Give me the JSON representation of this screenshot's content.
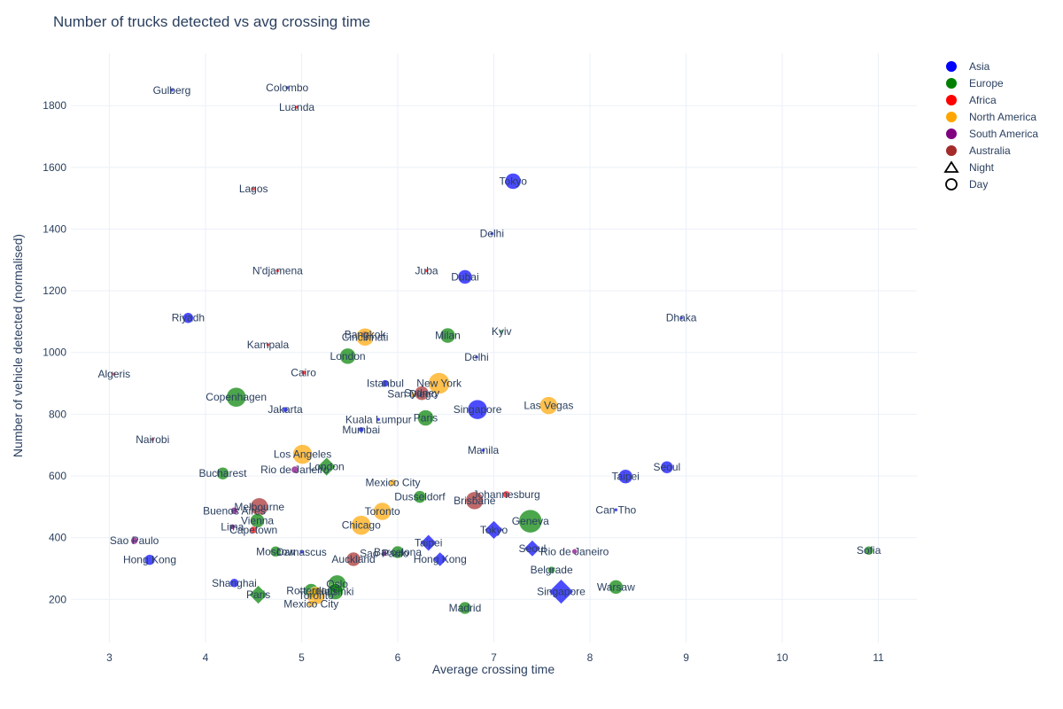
{
  "chart_data": {
    "type": "scatter",
    "title": "Number of trucks detected vs avg crossing time",
    "xlabel": "Average crossing time",
    "ylabel": "Number of vehicle detected (normalised)",
    "xlim": [
      2.6,
      11.4
    ],
    "ylim": [
      60,
      1970
    ],
    "xticks": [
      3,
      4,
      5,
      6,
      7,
      8,
      9,
      10,
      11
    ],
    "yticks": [
      200,
      400,
      600,
      800,
      1000,
      1200,
      1400,
      1600,
      1800
    ],
    "grid": true,
    "legend_position": "top-right",
    "colors": {
      "Asia": "#0000ff",
      "Europe": "#008000",
      "Africa": "#ff0000",
      "North America": "#ffa500",
      "South America": "#800080",
      "Australia": "#a52a2a"
    },
    "legend": {
      "regions": [
        "Asia",
        "Europe",
        "Africa",
        "North America",
        "South America",
        "Australia"
      ],
      "shapes": [
        {
          "label": "Night",
          "symbol": "triangle"
        },
        {
          "label": "Day",
          "symbol": "circle"
        }
      ]
    },
    "points": [
      {
        "label": "Gulberg",
        "x": 3.65,
        "y": 1850,
        "region": "Asia",
        "symbol": "circle",
        "size": 2
      },
      {
        "label": "Colombo",
        "x": 4.85,
        "y": 1858,
        "region": "Asia",
        "symbol": "circle",
        "size": 2
      },
      {
        "label": "Luanda",
        "x": 4.95,
        "y": 1795,
        "region": "Africa",
        "symbol": "circle",
        "size": 1
      },
      {
        "label": "Lagos",
        "x": 4.5,
        "y": 1530,
        "region": "Africa",
        "symbol": "circle",
        "size": 3
      },
      {
        "label": "Tokyo",
        "x": 7.2,
        "y": 1555,
        "region": "Asia",
        "symbol": "circle",
        "size": 18
      },
      {
        "label": "Delhi",
        "x": 6.98,
        "y": 1385,
        "region": "Asia",
        "symbol": "circle",
        "size": 4
      },
      {
        "label": "N'djamena",
        "x": 4.75,
        "y": 1265,
        "region": "Africa",
        "symbol": "circle",
        "size": 1
      },
      {
        "label": "Juba",
        "x": 6.3,
        "y": 1265,
        "region": "Africa",
        "symbol": "circle",
        "size": 1
      },
      {
        "label": "Dubai",
        "x": 6.7,
        "y": 1245,
        "region": "Asia",
        "symbol": "circle",
        "size": 16
      },
      {
        "label": "Riyadh",
        "x": 3.82,
        "y": 1112,
        "region": "Asia",
        "symbol": "circle",
        "size": 12
      },
      {
        "label": "Dhaka",
        "x": 8.95,
        "y": 1112,
        "region": "Asia",
        "symbol": "circle",
        "size": 2
      },
      {
        "label": "Kyiv",
        "x": 7.08,
        "y": 1068,
        "region": "Europe",
        "symbol": "circle",
        "size": 4
      },
      {
        "label": "Milan",
        "x": 6.52,
        "y": 1055,
        "region": "Europe",
        "symbol": "circle",
        "size": 17
      },
      {
        "label": "Bangkok",
        "x": 5.66,
        "y": 1058,
        "region": "Asia",
        "symbol": "circle",
        "size": 8
      },
      {
        "label": "Cincinnati",
        "x": 5.66,
        "y": 1050,
        "region": "North America",
        "symbol": "circle",
        "size": 20
      },
      {
        "label": "Kampala",
        "x": 4.65,
        "y": 1025,
        "region": "Africa",
        "symbol": "circle",
        "size": 1
      },
      {
        "label": "London",
        "x": 5.48,
        "y": 988,
        "region": "Europe",
        "symbol": "circle",
        "size": 18
      },
      {
        "label": "Delhi",
        "x": 6.82,
        "y": 985,
        "region": "Asia",
        "symbol": "circle",
        "size": 4
      },
      {
        "label": "Algeris",
        "x": 3.05,
        "y": 930,
        "region": "Africa",
        "symbol": "circle",
        "size": 2
      },
      {
        "label": "Cairo",
        "x": 5.02,
        "y": 935,
        "region": "Africa",
        "symbol": "circle",
        "size": 5
      },
      {
        "label": "Istanbul",
        "x": 5.87,
        "y": 900,
        "region": "Asia",
        "symbol": "circle",
        "size": 8
      },
      {
        "label": "New York",
        "x": 6.43,
        "y": 900,
        "region": "North America",
        "symbol": "circle",
        "size": 24
      },
      {
        "label": "Sydney",
        "x": 6.25,
        "y": 868,
        "region": "Australia",
        "symbol": "circle",
        "size": 16
      },
      {
        "label": "San Diego",
        "x": 6.15,
        "y": 865,
        "region": "North America",
        "symbol": "circle",
        "size": 6
      },
      {
        "label": "Copenhagen",
        "x": 4.32,
        "y": 855,
        "region": "Europe",
        "symbol": "circle",
        "size": 22
      },
      {
        "label": "Jakarta",
        "x": 4.83,
        "y": 815,
        "region": "Asia",
        "symbol": "circle",
        "size": 6
      },
      {
        "label": "Singapore",
        "x": 6.83,
        "y": 815,
        "region": "Asia",
        "symbol": "circle",
        "size": 22
      },
      {
        "label": "Las Vegas",
        "x": 7.57,
        "y": 828,
        "region": "North America",
        "symbol": "circle",
        "size": 20
      },
      {
        "label": "Kuala Lumpur",
        "x": 5.8,
        "y": 783,
        "region": "Asia",
        "symbol": "circle",
        "size": 3
      },
      {
        "label": "Paris",
        "x": 6.29,
        "y": 788,
        "region": "Europe",
        "symbol": "circle",
        "size": 18
      },
      {
        "label": "Mumbai",
        "x": 5.62,
        "y": 750,
        "region": "Asia",
        "symbol": "circle",
        "size": 6
      },
      {
        "label": "Nairobi",
        "x": 3.45,
        "y": 718,
        "region": "Africa",
        "symbol": "circle",
        "size": 1
      },
      {
        "label": "Manila",
        "x": 6.89,
        "y": 683,
        "region": "Asia",
        "symbol": "circle",
        "size": 4
      },
      {
        "label": "Los Angeles",
        "x": 5.01,
        "y": 670,
        "region": "North America",
        "symbol": "circle",
        "size": 22
      },
      {
        "label": "London",
        "x": 5.26,
        "y": 630,
        "region": "Europe",
        "symbol": "triangle",
        "size": 18
      },
      {
        "label": "Rio de Janeiro",
        "x": 4.93,
        "y": 620,
        "region": "South America",
        "symbol": "circle",
        "size": 8
      },
      {
        "label": "Seoul",
        "x": 8.8,
        "y": 628,
        "region": "Asia",
        "symbol": "circle",
        "size": 14
      },
      {
        "label": "Bucharest",
        "x": 4.18,
        "y": 608,
        "region": "Europe",
        "symbol": "circle",
        "size": 14
      },
      {
        "label": "Taipei",
        "x": 8.37,
        "y": 598,
        "region": "Asia",
        "symbol": "circle",
        "size": 16
      },
      {
        "label": "Mexico City",
        "x": 5.95,
        "y": 578,
        "region": "North America",
        "symbol": "circle",
        "size": 8
      },
      {
        "label": "Johannesburg",
        "x": 7.13,
        "y": 540,
        "region": "Africa",
        "symbol": "circle",
        "size": 8
      },
      {
        "label": "Dusseldorf",
        "x": 6.23,
        "y": 532,
        "region": "Europe",
        "symbol": "circle",
        "size": 14
      },
      {
        "label": "Brisbane",
        "x": 6.8,
        "y": 520,
        "region": "Australia",
        "symbol": "circle",
        "size": 20
      },
      {
        "label": "Melbourne",
        "x": 4.56,
        "y": 500,
        "region": "Australia",
        "symbol": "circle",
        "size": 20
      },
      {
        "label": "Can Tho",
        "x": 8.27,
        "y": 490,
        "region": "Asia",
        "symbol": "circle",
        "size": 3
      },
      {
        "label": "Buenos Aires",
        "x": 4.3,
        "y": 487,
        "region": "South America",
        "symbol": "circle",
        "size": 8
      },
      {
        "label": "Toronto",
        "x": 5.84,
        "y": 485,
        "region": "North America",
        "symbol": "circle",
        "size": 20
      },
      {
        "label": "Vienna",
        "x": 4.54,
        "y": 455,
        "region": "Europe",
        "symbol": "circle",
        "size": 16
      },
      {
        "label": "Geneva",
        "x": 7.38,
        "y": 453,
        "region": "Europe",
        "symbol": "circle",
        "size": 26
      },
      {
        "label": "Chicago",
        "x": 5.62,
        "y": 440,
        "region": "North America",
        "symbol": "circle",
        "size": 22
      },
      {
        "label": "Lima",
        "x": 4.28,
        "y": 435,
        "region": "South America",
        "symbol": "circle",
        "size": 6
      },
      {
        "label": "Capetown",
        "x": 4.5,
        "y": 425,
        "region": "Africa",
        "symbol": "circle",
        "size": 8
      },
      {
        "label": "Tokyo",
        "x": 7.0,
        "y": 425,
        "region": "Asia",
        "symbol": "triangle",
        "size": 18
      },
      {
        "label": "Sao Paulo",
        "x": 3.26,
        "y": 390,
        "region": "South America",
        "symbol": "circle",
        "size": 8
      },
      {
        "label": "Taipei",
        "x": 6.32,
        "y": 383,
        "region": "Asia",
        "symbol": "triangle",
        "size": 16
      },
      {
        "label": "Seoul",
        "x": 7.4,
        "y": 365,
        "region": "Asia",
        "symbol": "triangle",
        "size": 16
      },
      {
        "label": "Rio de Janeiro",
        "x": 7.84,
        "y": 355,
        "region": "South America",
        "symbol": "circle",
        "size": 6
      },
      {
        "label": "Sofia",
        "x": 10.9,
        "y": 358,
        "region": "Europe",
        "symbol": "circle",
        "size": 10
      },
      {
        "label": "Moscow",
        "x": 4.73,
        "y": 355,
        "region": "Europe",
        "symbol": "circle",
        "size": 12
      },
      {
        "label": "Damascus",
        "x": 5.0,
        "y": 353,
        "region": "Asia",
        "symbol": "circle",
        "size": 3
      },
      {
        "label": "Barcelona",
        "x": 6.0,
        "y": 353,
        "region": "Europe",
        "symbol": "circle",
        "size": 14
      },
      {
        "label": "Sao Paulo",
        "x": 5.86,
        "y": 348,
        "region": "South America",
        "symbol": "circle",
        "size": 6
      },
      {
        "label": "Auckland",
        "x": 5.54,
        "y": 330,
        "region": "Australia",
        "symbol": "circle",
        "size": 16
      },
      {
        "label": "Hong Kong",
        "x": 6.44,
        "y": 330,
        "region": "Asia",
        "symbol": "triangle",
        "size": 14
      },
      {
        "label": "Hong Kong",
        "x": 3.42,
        "y": 328,
        "region": "Asia",
        "symbol": "circle",
        "size": 12
      },
      {
        "label": "Belgrade",
        "x": 7.6,
        "y": 295,
        "region": "Europe",
        "symbol": "circle",
        "size": 8
      },
      {
        "label": "Shanghai",
        "x": 4.3,
        "y": 253,
        "region": "Asia",
        "symbol": "circle",
        "size": 10
      },
      {
        "label": "Oslo",
        "x": 5.37,
        "y": 250,
        "region": "Europe",
        "symbol": "circle",
        "size": 20
      },
      {
        "label": "Warsaw",
        "x": 8.27,
        "y": 240,
        "region": "Europe",
        "symbol": "circle",
        "size": 16
      },
      {
        "label": "Rotterdam",
        "x": 5.1,
        "y": 228,
        "region": "Europe",
        "symbol": "circle",
        "size": 16
      },
      {
        "label": "Helsinki",
        "x": 5.35,
        "y": 225,
        "region": "Europe",
        "symbol": "circle",
        "size": 18
      },
      {
        "label": "Singapore",
        "x": 7.7,
        "y": 225,
        "region": "Asia",
        "symbol": "triangle",
        "size": 24
      },
      {
        "label": "Paris",
        "x": 4.55,
        "y": 215,
        "region": "Europe",
        "symbol": "triangle",
        "size": 18
      },
      {
        "label": "Toronto",
        "x": 5.15,
        "y": 212,
        "region": "North America",
        "symbol": "circle",
        "size": 20
      },
      {
        "label": "Mexico City",
        "x": 5.1,
        "y": 185,
        "region": "North America",
        "symbol": "circle",
        "size": 8
      },
      {
        "label": "Madrid",
        "x": 6.7,
        "y": 172,
        "region": "Europe",
        "symbol": "circle",
        "size": 14
      }
    ]
  }
}
